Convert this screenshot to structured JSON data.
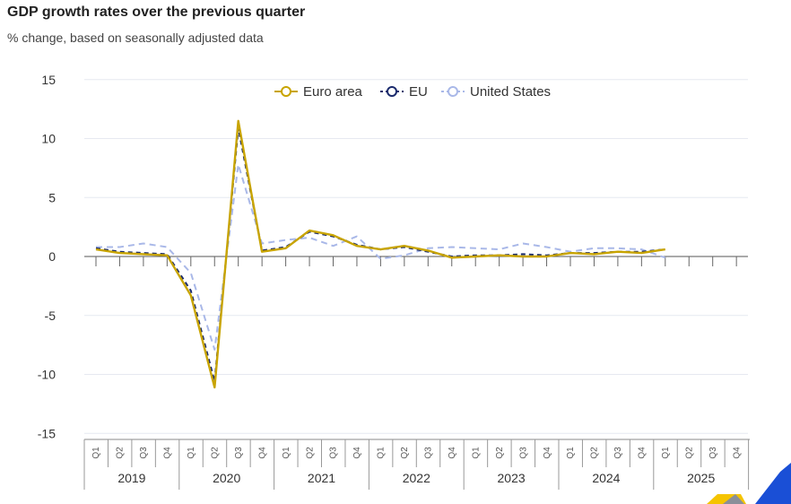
{
  "title": "GDP growth rates over the previous quarter",
  "subtitle": "% change, based on seasonally adjusted data",
  "chart_data": {
    "type": "line",
    "title": "GDP growth rates over the previous quarter",
    "subtitle": "% change, based on seasonally adjusted data",
    "xlabel": "",
    "ylabel": "",
    "ylim": [
      -15,
      15
    ],
    "yticks": [
      15,
      10,
      5,
      0,
      -5,
      -10,
      -15
    ],
    "grid": true,
    "legend_position": "top",
    "quarters": [
      "Q1",
      "Q2",
      "Q3",
      "Q4"
    ],
    "years": [
      "2019",
      "2020",
      "2021",
      "2022",
      "2023",
      "2024",
      "2025"
    ],
    "categories": [
      "2019-Q1",
      "2019-Q2",
      "2019-Q3",
      "2019-Q4",
      "2020-Q1",
      "2020-Q2",
      "2020-Q3",
      "2020-Q4",
      "2021-Q1",
      "2021-Q2",
      "2021-Q3",
      "2021-Q4",
      "2022-Q1",
      "2022-Q2",
      "2022-Q3",
      "2022-Q4",
      "2023-Q1",
      "2023-Q2",
      "2023-Q3",
      "2023-Q4",
      "2024-Q1",
      "2024-Q2",
      "2024-Q3",
      "2024-Q4",
      "2025-Q1",
      "2025-Q2",
      "2025-Q3",
      "2025-Q4"
    ],
    "series": [
      {
        "name": "Euro area",
        "color": "#c8a400",
        "style": "solid",
        "values": [
          0.6,
          0.3,
          0.2,
          0.1,
          -3.3,
          -11.1,
          11.5,
          0.4,
          0.7,
          2.2,
          1.8,
          0.9,
          0.6,
          0.9,
          0.5,
          -0.1,
          0.0,
          0.1,
          0.0,
          0.0,
          0.3,
          0.2,
          0.4,
          0.3,
          0.6,
          null,
          null,
          null
        ]
      },
      {
        "name": "EU",
        "color": "#1a2a6c",
        "style": "dashed",
        "values": [
          0.7,
          0.4,
          0.3,
          0.2,
          -2.9,
          -10.6,
          10.9,
          0.5,
          0.8,
          2.1,
          1.7,
          1.0,
          0.6,
          0.8,
          0.4,
          0.0,
          0.1,
          0.1,
          0.2,
          0.1,
          0.3,
          0.3,
          0.4,
          0.4,
          0.6,
          null,
          null,
          null
        ]
      },
      {
        "name": "United States",
        "color": "#a9b8e8",
        "style": "dashed",
        "values": [
          0.8,
          0.8,
          1.1,
          0.8,
          -1.4,
          -7.9,
          7.8,
          1.1,
          1.4,
          1.6,
          0.9,
          1.7,
          -0.2,
          0.1,
          0.7,
          0.8,
          0.7,
          0.6,
          1.1,
          0.8,
          0.4,
          0.7,
          0.7,
          0.6,
          -0.1,
          null,
          null,
          null
        ]
      }
    ]
  }
}
